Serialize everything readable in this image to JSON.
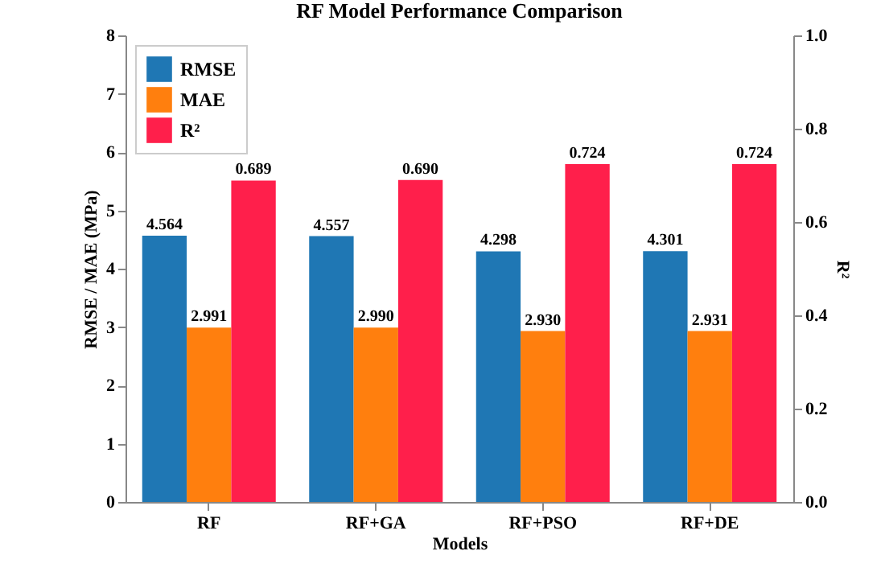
{
  "chart_data": {
    "type": "bar",
    "title": "RF Model Performance Comparison",
    "xlabel": "Models",
    "ylabel": "RMSE / MAE (MPa)",
    "y2label": "R²",
    "categories": [
      "RF",
      "RF+GA",
      "RF+PSO",
      "RF+DE"
    ],
    "series": [
      {
        "name": "RMSE",
        "color": "#1f77b4",
        "values": [
          4.564,
          4.557,
          4.298,
          4.301
        ],
        "value_labels": [
          "4.564",
          "4.557",
          "4.298",
          "4.301"
        ]
      },
      {
        "name": "MAE",
        "color": "#ff7f0e",
        "values": [
          2.991,
          2.99,
          2.93,
          2.931
        ],
        "value_labels": [
          "2.991",
          "2.990",
          "2.930",
          "2.931"
        ]
      },
      {
        "name": "R²",
        "color": "#ff1f4b",
        "axis": "y2",
        "values": [
          0.689,
          0.69,
          0.724,
          0.724
        ],
        "value_labels": [
          "0.689",
          "0.690",
          "0.724",
          "0.724"
        ]
      }
    ],
    "ylim": [
      0,
      8
    ],
    "yticks": [
      0,
      1,
      2,
      3,
      4,
      5,
      6,
      7,
      8
    ],
    "y2lim": [
      0,
      1
    ],
    "y2ticks": [
      {
        "value": 0,
        "label": "0.0"
      },
      {
        "value": 0.2,
        "label": "0.2"
      },
      {
        "value": 0.4,
        "label": "0.4"
      },
      {
        "value": 0.6,
        "label": "0.6"
      },
      {
        "value": 0.8,
        "label": "0.8"
      },
      {
        "value": 1,
        "label": "1.0"
      }
    ],
    "legend": "top left",
    "grid": false
  }
}
